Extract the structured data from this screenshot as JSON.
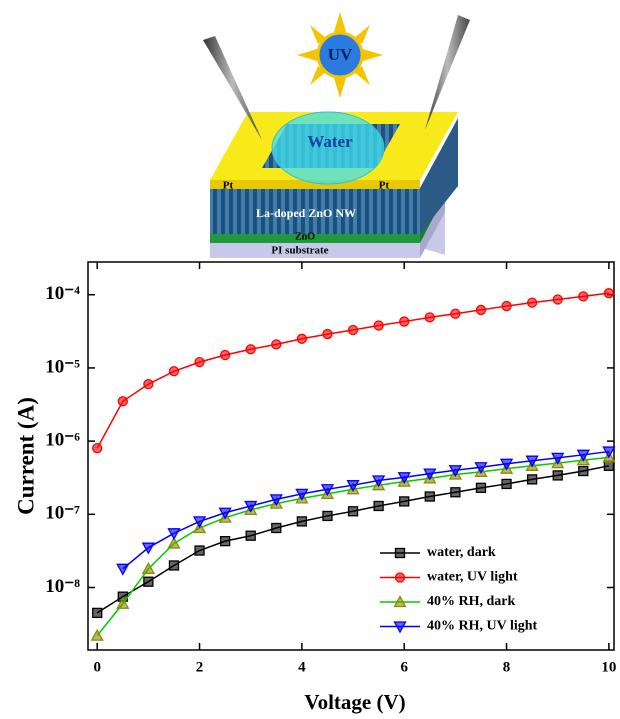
{
  "schematic": {
    "sun": "UV",
    "drop": "Water",
    "electrode_left": "Pt",
    "electrode_right": "Pt",
    "nanowires": "La-doped ZnO NW",
    "seed_layer": "ZnO",
    "substrate": "PI substrate"
  },
  "chart_data": {
    "type": "line",
    "x_label": "Voltage (V)",
    "y_label": "Current (A)",
    "log_y": true,
    "legend": "lower right",
    "x": [
      0,
      0.5,
      1,
      1.5,
      2,
      2.5,
      3,
      3.5,
      4,
      4.5,
      5,
      5.5,
      6,
      6.5,
      7,
      7.5,
      8,
      8.5,
      9,
      9.5,
      10
    ],
    "xlim": [
      -0.18,
      10.1
    ],
    "xticks": [
      0,
      2,
      4,
      6,
      8,
      10
    ],
    "ylim": [
      1.4e-09,
      0.00028
    ],
    "yticks": [
      {
        "value": 1e-08,
        "label": "10⁻⁸"
      },
      {
        "value": 1e-07,
        "label": "10⁻⁷"
      },
      {
        "value": 1e-06,
        "label": "10⁻⁶"
      },
      {
        "value": 1e-05,
        "label": "10⁻⁵"
      },
      {
        "value": 0.0001,
        "label": "10⁻⁴"
      }
    ],
    "series": [
      {
        "name": "water, dark",
        "color": "#000000",
        "marker": "square",
        "values": [
          4.5e-09,
          7.5e-09,
          1.2e-08,
          2e-08,
          3.2e-08,
          4.3e-08,
          5.1e-08,
          6.5e-08,
          8e-08,
          9.5e-08,
          1.1e-07,
          1.3e-07,
          1.5e-07,
          1.75e-07,
          2e-07,
          2.3e-07,
          2.6e-07,
          3e-07,
          3.4e-07,
          3.9e-07,
          4.6e-07
        ]
      },
      {
        "name": "water, UV light",
        "color": "#ff0000",
        "marker": "circle",
        "values": [
          8e-07,
          3.5e-06,
          6e-06,
          9e-06,
          1.2e-05,
          1.5e-05,
          1.8e-05,
          2.1e-05,
          2.5e-05,
          2.9e-05,
          3.3e-05,
          3.8e-05,
          4.3e-05,
          4.9e-05,
          5.5e-05,
          6.2e-05,
          7e-05,
          7.8e-05,
          8.6e-05,
          9.5e-05,
          0.000105
        ]
      },
      {
        "name": "40% RH, dark",
        "color": "#00cc00",
        "marker_color": "#8b8b00",
        "marker": "triangle-up",
        "values": [
          2.2e-09,
          6e-09,
          1.8e-08,
          4e-08,
          6.5e-08,
          9e-08,
          1.15e-07,
          1.4e-07,
          1.65e-07,
          1.9e-07,
          2.2e-07,
          2.5e-07,
          2.8e-07,
          3.1e-07,
          3.5e-07,
          3.8e-07,
          4.2e-07,
          4.6e-07,
          5e-07,
          5.5e-07,
          6e-07
        ]
      },
      {
        "name": "40% RH, UV light",
        "color": "#0000ff",
        "marker": "triangle-down",
        "values": [
          null,
          1.8e-08,
          3.5e-08,
          5.5e-08,
          8e-08,
          1.05e-07,
          1.3e-07,
          1.6e-07,
          1.9e-07,
          2.2e-07,
          2.5e-07,
          2.9e-07,
          3.2e-07,
          3.6e-07,
          4e-07,
          4.4e-07,
          4.9e-07,
          5.4e-07,
          5.9e-07,
          6.5e-07,
          7.2e-07
        ]
      }
    ]
  }
}
